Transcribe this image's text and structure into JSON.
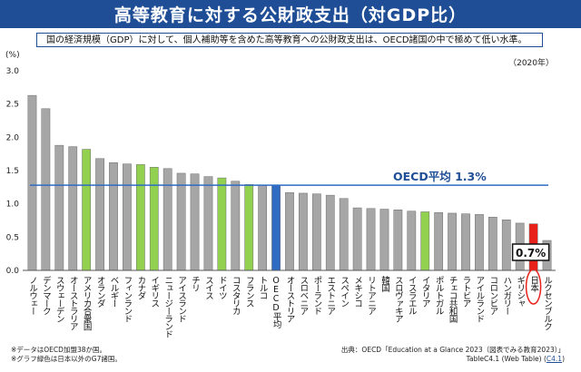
{
  "header": {
    "title": "高等教育に対する公財政支出（対GDP比）",
    "summary": "国の経済規模（GDP）に対して、個人補助等を含めた高等教育への公財政支出は、OECD諸国の中で極めて低い水準。"
  },
  "footer": {
    "note1": "※データはOECD加盟38か国。",
    "note2": "※グラフ緑色は日本以外のG7諸国。",
    "source": "出典：OECD「Education at a Glance 2023（図表でみる教育2023）」",
    "table_ref": "TableC4.1 (Web Table)",
    "table_link": "C4.1"
  },
  "colors": {
    "title_bg": "#1f4e96",
    "bar_default": "#a6a6a6",
    "bar_g7": "#92d050",
    "bar_oecd": "#2f6bc2",
    "bar_japan": "#e8221b",
    "avg_line": "#2f6bc2",
    "japan_circle": "#e8221b"
  },
  "chart_data": {
    "type": "bar",
    "ylabel": "(%)",
    "year_note": "（2020年）",
    "ylim": [
      0,
      3.0
    ],
    "yticks": [
      "0.0",
      "0.5",
      "1.0",
      "1.5",
      "2.0",
      "2.5",
      "3.0"
    ],
    "grid": false,
    "categories": [
      "ノルウェー",
      "デンマーク",
      "スウェーデン",
      "オーストラリア",
      "アメリカ合衆国",
      "オランダ",
      "ベルギー",
      "フィンランド",
      "カナダ",
      "イギリス",
      "ニュージーランド",
      "アイスランド",
      "チリ",
      "スイス",
      "ドイツ",
      "コスタリカ",
      "フランス",
      "トルコ",
      "OECD平均",
      "オーストリア",
      "スロベニア",
      "ポーランド",
      "エストニア",
      "スペイン",
      "メキシコ",
      "リトアニア",
      "韓国",
      "スロヴァキア",
      "イスラエル",
      "イタリア",
      "ポルトガル",
      "チェコ共和国",
      "ラトビア",
      "アイルランド",
      "コロンビア",
      "ハンガリー",
      "ギリシャ",
      "日本",
      "ルクセンブルク"
    ],
    "values": [
      2.63,
      2.43,
      1.88,
      1.86,
      1.82,
      1.68,
      1.62,
      1.6,
      1.59,
      1.55,
      1.53,
      1.46,
      1.45,
      1.41,
      1.39,
      1.34,
      1.29,
      1.28,
      1.28,
      1.17,
      1.16,
      1.15,
      1.13,
      1.08,
      0.94,
      0.93,
      0.92,
      0.91,
      0.89,
      0.88,
      0.87,
      0.86,
      0.85,
      0.84,
      0.8,
      0.76,
      0.71,
      0.7,
      0.45
    ],
    "groups": [
      "other",
      "other",
      "other",
      "other",
      "g7",
      "other",
      "other",
      "other",
      "g7",
      "g7",
      "other",
      "other",
      "other",
      "other",
      "g7",
      "other",
      "g7",
      "other",
      "oecd",
      "other",
      "other",
      "other",
      "other",
      "other",
      "other",
      "other",
      "other",
      "other",
      "other",
      "g7",
      "other",
      "other",
      "other",
      "other",
      "other",
      "other",
      "other",
      "japan",
      "other"
    ],
    "average": {
      "label": "OECD平均 1.3%",
      "value": 1.28
    },
    "callout": {
      "label": "0.7%",
      "category": "日本"
    }
  }
}
